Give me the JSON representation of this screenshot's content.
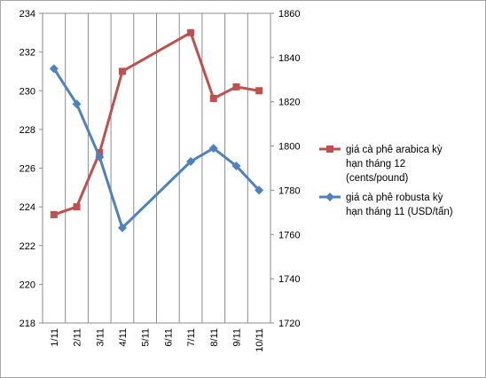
{
  "chart_data": {
    "type": "line",
    "categories": [
      "1/11",
      "2/11",
      "3/11",
      "4/11",
      "5/11",
      "6/11",
      "7/11",
      "8/11",
      "9/11",
      "10/11"
    ],
    "series": [
      {
        "name": "giá cà phê arabica kỳ hạn tháng 12 (cents/pound)",
        "axis": "left",
        "color": "#c0504d",
        "marker": "square",
        "values": [
          223.6,
          224.0,
          226.8,
          231.0,
          null,
          null,
          233.0,
          229.6,
          230.2,
          230.0
        ]
      },
      {
        "name": "giá cà phê robusta kỳ hạn tháng 11 (USD/tấn)",
        "axis": "right",
        "color": "#4f81bd",
        "marker": "diamond",
        "values": [
          1835,
          1819,
          1795,
          1763,
          null,
          null,
          1793,
          1799,
          1791,
          1780
        ]
      }
    ],
    "y_left": {
      "range": [
        218,
        234
      ],
      "ticks": [
        "218",
        "220",
        "222",
        "224",
        "226",
        "228",
        "230",
        "232",
        "234"
      ]
    },
    "y_right": {
      "range": [
        1720,
        1860
      ],
      "ticks": [
        "1720",
        "1740",
        "1760",
        "1780",
        "1800",
        "1820",
        "1840",
        "1860"
      ]
    },
    "grid": {
      "horizontal": false,
      "vertical": true
    },
    "legend": {
      "position": "right",
      "entries": [
        {
          "lines": [
            "giá cà phê arabica kỳ",
            "hạn tháng 12",
            "(cents/pound)"
          ]
        },
        {
          "lines": [
            "giá cà phê robusta kỳ",
            "hạn tháng 11 (USD/tấn)"
          ]
        }
      ]
    }
  }
}
